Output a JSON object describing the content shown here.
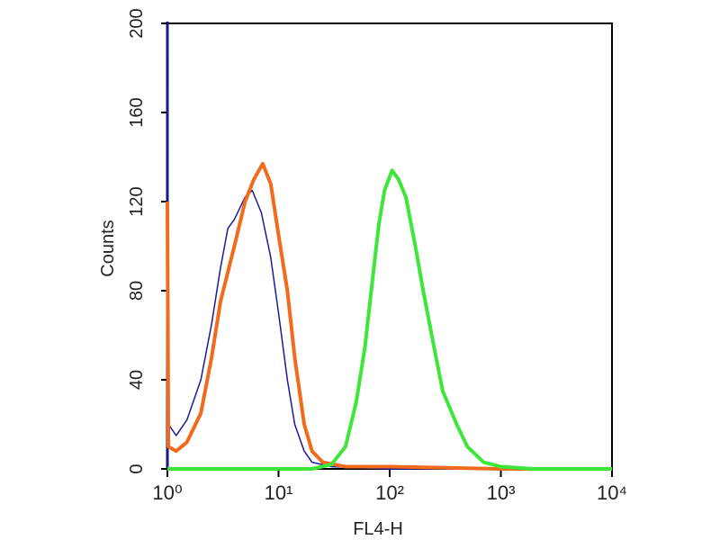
{
  "chart_data": {
    "type": "line",
    "x_label": "FL4-H",
    "y_label": "Counts",
    "xscale": "log",
    "xlim": [
      1,
      10000
    ],
    "xticks": [
      {
        "value": 1,
        "label": "10⁰"
      },
      {
        "value": 10,
        "label": "10¹"
      },
      {
        "value": 100,
        "label": "10²"
      },
      {
        "value": 1000,
        "label": "10³"
      },
      {
        "value": 10000,
        "label": "10⁴"
      }
    ],
    "ylim": [
      0,
      200
    ],
    "yticks": [
      0,
      40,
      80,
      120,
      160,
      200
    ],
    "series": [
      {
        "color": "#1a1a9c",
        "x": [
          1,
          1.02,
          1.2,
          1.5,
          2,
          2.5,
          3,
          3.5,
          4,
          5,
          5.8,
          7,
          8.5,
          10,
          12,
          14,
          17,
          20,
          30,
          100,
          10000
        ],
        "values": [
          200,
          20,
          15,
          22,
          40,
          65,
          90,
          108,
          112,
          122,
          125,
          115,
          95,
          70,
          40,
          20,
          8,
          3,
          1,
          0,
          0
        ]
      },
      {
        "color": "#f26a1b",
        "x": [
          1,
          1.02,
          1.2,
          1.5,
          2,
          2.5,
          3,
          4,
          5,
          6,
          7.2,
          8.5,
          10,
          12,
          14,
          17,
          20,
          25,
          40,
          100,
          1000,
          10000
        ],
        "values": [
          120,
          10,
          8,
          12,
          25,
          50,
          75,
          100,
          120,
          130,
          137,
          128,
          105,
          80,
          50,
          20,
          8,
          3,
          1,
          1,
          0,
          0
        ]
      },
      {
        "color": "#3ee63a",
        "x": [
          1,
          20,
          30,
          40,
          50,
          60,
          70,
          80,
          90,
          105,
          120,
          140,
          170,
          200,
          250,
          300,
          400,
          500,
          700,
          1000,
          2000,
          10000
        ],
        "values": [
          0,
          0,
          2,
          10,
          30,
          55,
          85,
          110,
          125,
          134,
          130,
          122,
          100,
          80,
          55,
          35,
          20,
          10,
          3,
          1,
          0,
          0
        ]
      }
    ]
  }
}
